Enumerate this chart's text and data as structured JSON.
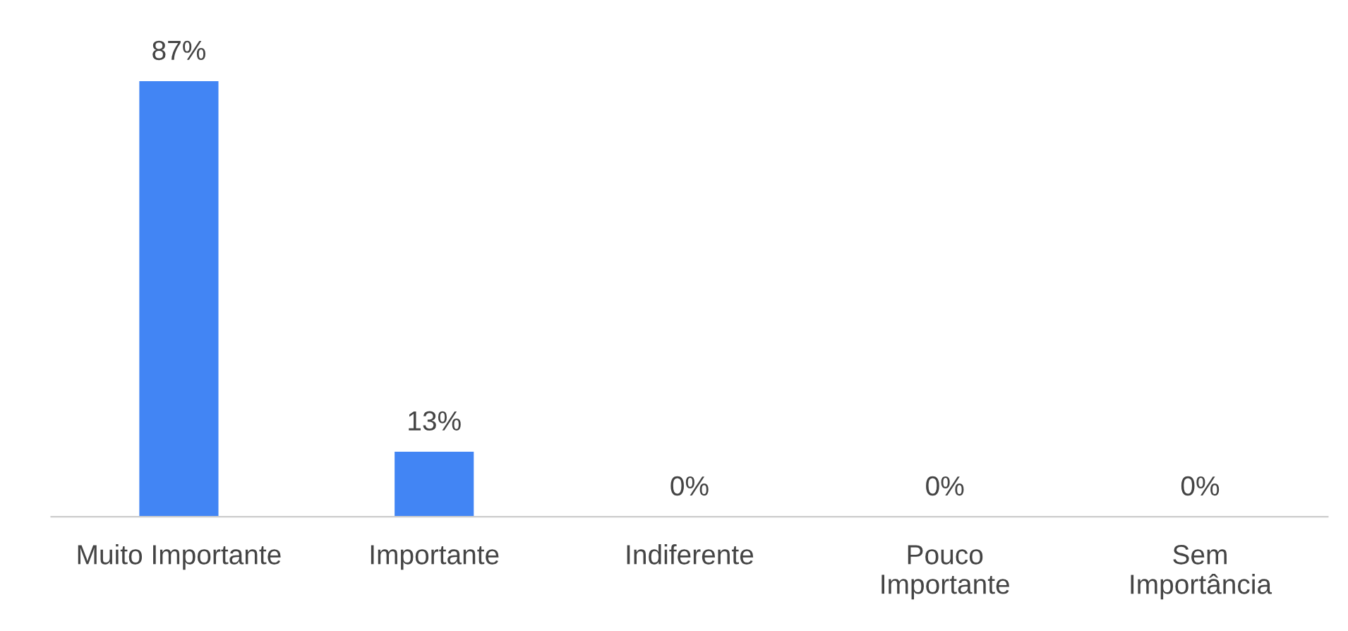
{
  "chart_data": {
    "type": "bar",
    "categories": [
      "Muito Importante",
      "Importante",
      "Indiferente",
      "Pouco\nImportante",
      "Sem\nImportância"
    ],
    "values": [
      87,
      13,
      0,
      0,
      0
    ],
    "value_labels": [
      "87%",
      "13%",
      "0%",
      "0%",
      "0%"
    ],
    "color": "#4285f4",
    "grid": false,
    "legend": false
  }
}
